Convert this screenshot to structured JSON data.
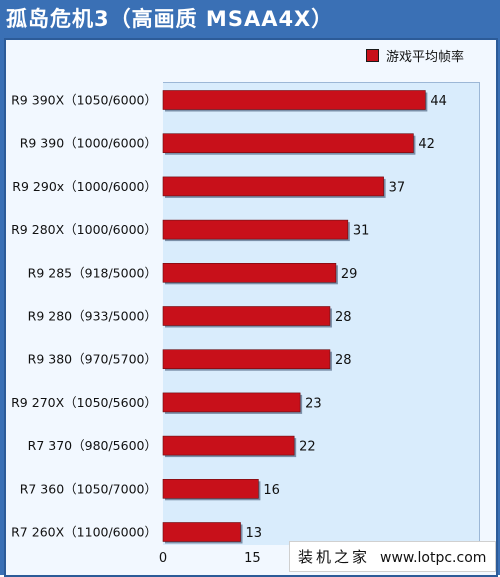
{
  "title": "孤岛危机3（高画质 MSAA4X）",
  "legend_label": "游戏平均帧率",
  "colors": {
    "frame": "#3a70b5",
    "bar": "#c8101a",
    "plot_bg": "#d9ecfc",
    "panel_bg": "#f2f8ff"
  },
  "watermark": {
    "cn": "装机之家",
    "url": "www.lotpc.com"
  },
  "chart_data": {
    "type": "bar",
    "orientation": "horizontal",
    "categories": [
      "R9 390X（1050/6000）",
      "R9 390（1000/6000）",
      "R9 290x（1000/6000）",
      "R9 280X（1000/6000）",
      "R9 285（918/5000）",
      "R9 280（933/5000）",
      "R9 380（970/5700）",
      "R9 270X（1050/5600）",
      "R7 370（980/5600）",
      "R7 360（1050/7000）",
      "R7 260X（1100/6000）"
    ],
    "series": [
      {
        "name": "游戏平均帧率",
        "values": [
          44,
          42,
          37,
          31,
          29,
          28,
          28,
          23,
          22,
          16,
          13
        ]
      }
    ],
    "x_ticks": [
      "0",
      "15"
    ],
    "xlim": [
      0,
      53
    ],
    "legend_position": "top-right",
    "grid": false
  }
}
